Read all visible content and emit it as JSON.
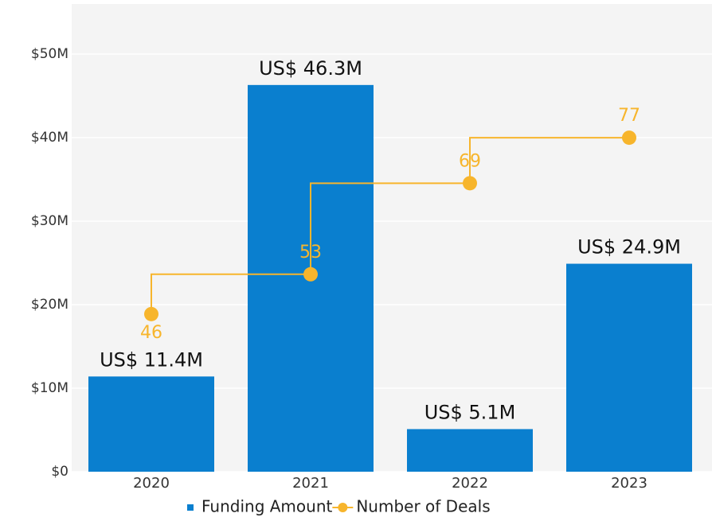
{
  "chart_data": {
    "type": "bar",
    "categories": [
      "2020",
      "2021",
      "2022",
      "2023"
    ],
    "series": [
      {
        "name": "Funding Amount",
        "type": "bar",
        "color": "#0a7fcf",
        "values": [
          11.4,
          46.3,
          5.1,
          24.9
        ],
        "value_labels": [
          "US$ 11.4M",
          "US$ 46.3M",
          "US$ 5.1M",
          "US$ 24.9M"
        ]
      },
      {
        "name": "Number of Deals",
        "type": "line",
        "axis": "y2",
        "color": "#f7b52c",
        "values": [
          46,
          53,
          69,
          77
        ]
      }
    ],
    "ylim": [
      0,
      56
    ],
    "yticks": [
      {
        "value": 0,
        "label": "$0"
      },
      {
        "value": 10,
        "label": "$10M"
      },
      {
        "value": 20,
        "label": "$20M"
      },
      {
        "value": 30,
        "label": "$30M"
      },
      {
        "value": 40,
        "label": "$40M"
      },
      {
        "value": 50,
        "label": "$50M"
      }
    ],
    "y2lim": [
      18.3,
      100.5
    ],
    "grid": true,
    "legend": "bottom"
  }
}
